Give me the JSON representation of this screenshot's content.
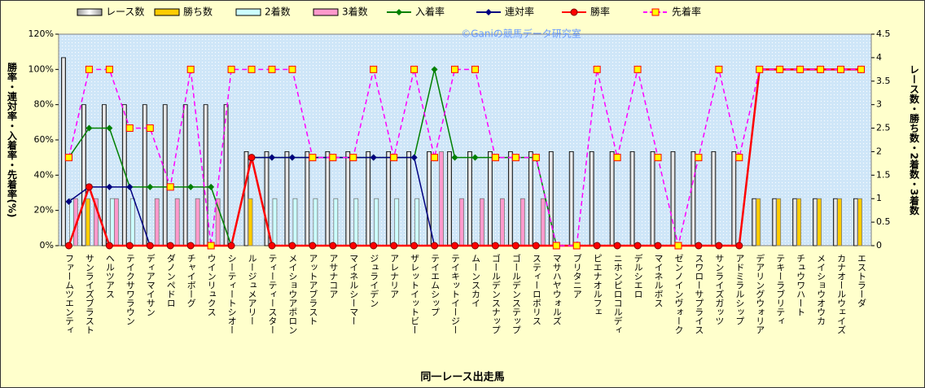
{
  "chart_data": {
    "type": "bar",
    "watermark": "©Ganiの競馬データ研究室",
    "xlabel": "同一レース出走馬",
    "ylabel": "勝率・連対率・入着率・先着率(%)",
    "y2label": "レース数・勝ち数・2着数・3着数",
    "categories": [
      "ファームツエンティ",
      "サンライズブラスト",
      "ヘルツアス",
      "テイクサワラウン",
      "ディアマイサン",
      "ダノンペドロ",
      "チャイボーグ",
      "ウインリュクス",
      "シーティートシオー",
      "ルージュメアリー",
      "ティーティースター",
      "メイショウアポロン",
      "アットアブラスト",
      "アサナコア",
      "マイネルシーマー",
      "ジュライデン",
      "アレナリア",
      "ザレットイットビー",
      "テイエムシップ",
      "テイキットイージー",
      "ムーンスカイ",
      "ゴールデンスナップ",
      "ゴールデンステップ",
      "スティーロポリス",
      "マサハヤウォルズ",
      "ブリタニア",
      "ピエナオルフェ",
      "ニホンピロコルディ",
      "デルシエロ",
      "マイネルボス",
      "ゼンノインヴォーク",
      "スワローサプライス",
      "サンライズガッツ",
      "アドミラルシップ",
      "デアリングウォリア",
      "テキーラブリティ",
      "チュウワハート",
      "メイショウオウカ",
      "カナオールウェイズ",
      "エストラーダ"
    ],
    "ylim": [
      0,
      120
    ],
    "yticks": [
      {
        "value": 0,
        "label": "0%"
      },
      {
        "value": 20,
        "label": "20%"
      },
      {
        "value": 40,
        "label": "40%"
      },
      {
        "value": 60,
        "label": "60%"
      },
      {
        "value": 80,
        "label": "80%"
      },
      {
        "value": 100,
        "label": "100%"
      },
      {
        "value": 120,
        "label": "120%"
      }
    ],
    "y2lim": [
      0,
      4.5
    ],
    "y2ticks": [
      0,
      0.5,
      1,
      1.5,
      2,
      2.5,
      3,
      3.5,
      4,
      4.5
    ],
    "series": [
      {
        "name": "レース数",
        "type": "bar",
        "axis": "y2",
        "color": "#ffffff",
        "values": [
          4,
          3,
          3,
          3,
          3,
          3,
          3,
          3,
          3,
          2,
          2,
          2,
          2,
          2,
          2,
          2,
          2,
          2,
          2,
          2,
          2,
          2,
          2,
          2,
          2,
          2,
          2,
          2,
          2,
          2,
          2,
          2,
          2,
          2,
          1,
          1,
          1,
          1,
          1,
          1
        ]
      },
      {
        "name": "勝ち数",
        "type": "bar",
        "axis": "y2",
        "color": "#ffcc00",
        "values": [
          0,
          1,
          0,
          0,
          0,
          0,
          0,
          0,
          0,
          1,
          0,
          0,
          0,
          0,
          0,
          0,
          0,
          0,
          0,
          0,
          0,
          0,
          0,
          0,
          0,
          0,
          0,
          0,
          0,
          0,
          0,
          0,
          0,
          0,
          1,
          1,
          1,
          1,
          1,
          1
        ]
      },
      {
        "name": "2着数",
        "type": "bar",
        "axis": "y2",
        "color": "#ccffff",
        "values": [
          1,
          0,
          1,
          1,
          0,
          0,
          0,
          0,
          0,
          0,
          1,
          1,
          1,
          1,
          1,
          1,
          1,
          1,
          0,
          0,
          0,
          0,
          0,
          0,
          0,
          0,
          0,
          0,
          0,
          0,
          0,
          0,
          0,
          0,
          0,
          0,
          0,
          0,
          0,
          0
        ]
      },
      {
        "name": "3着数",
        "type": "bar",
        "axis": "y2",
        "color": "#ff99cc",
        "values": [
          1,
          1,
          1,
          0,
          1,
          1,
          1,
          1,
          0,
          0,
          0,
          0,
          0,
          0,
          0,
          0,
          0,
          0,
          2,
          1,
          1,
          1,
          1,
          1,
          0,
          0,
          0,
          0,
          0,
          0,
          0,
          0,
          0,
          0,
          0,
          0,
          0,
          0,
          0,
          0
        ]
      },
      {
        "name": "入着率",
        "type": "line",
        "marker": "diamond",
        "color": "#008000",
        "values": [
          50,
          66.7,
          66.7,
          33.3,
          33.3,
          33.3,
          33.3,
          33.3,
          0,
          50,
          50,
          50,
          50,
          50,
          50,
          50,
          50,
          50,
          100,
          50,
          50,
          50,
          50,
          50,
          0,
          0,
          0,
          0,
          0,
          0,
          0,
          0,
          0,
          0,
          100,
          100,
          100,
          100,
          100,
          100
        ]
      },
      {
        "name": "連対率",
        "type": "line",
        "marker": "diamond",
        "color": "#000080",
        "values": [
          25,
          33.3,
          33.3,
          33.3,
          0,
          0,
          0,
          0,
          0,
          50,
          50,
          50,
          50,
          50,
          50,
          50,
          50,
          50,
          0,
          0,
          0,
          0,
          0,
          0,
          0,
          0,
          0,
          0,
          0,
          0,
          0,
          0,
          0,
          0,
          100,
          100,
          100,
          100,
          100,
          100
        ]
      },
      {
        "name": "勝率",
        "type": "line",
        "marker": "circle",
        "color": "#ff0000",
        "values": [
          0,
          33.3,
          0,
          0,
          0,
          0,
          0,
          0,
          0,
          50,
          0,
          0,
          0,
          0,
          0,
          0,
          0,
          0,
          0,
          0,
          0,
          0,
          0,
          0,
          0,
          0,
          0,
          0,
          0,
          0,
          0,
          0,
          0,
          0,
          100,
          100,
          100,
          100,
          100,
          100
        ]
      },
      {
        "name": "先着率",
        "type": "line",
        "marker": "square",
        "dashed": true,
        "color": "#ff00ff",
        "values": [
          50,
          100,
          100,
          66.7,
          66.7,
          33.3,
          100,
          0,
          100,
          100,
          100,
          100,
          50,
          50,
          50,
          100,
          50,
          100,
          50,
          100,
          100,
          50,
          50,
          50,
          0,
          0,
          100,
          50,
          100,
          50,
          0,
          50,
          100,
          50,
          100,
          100,
          100,
          100,
          100,
          100
        ]
      }
    ]
  }
}
